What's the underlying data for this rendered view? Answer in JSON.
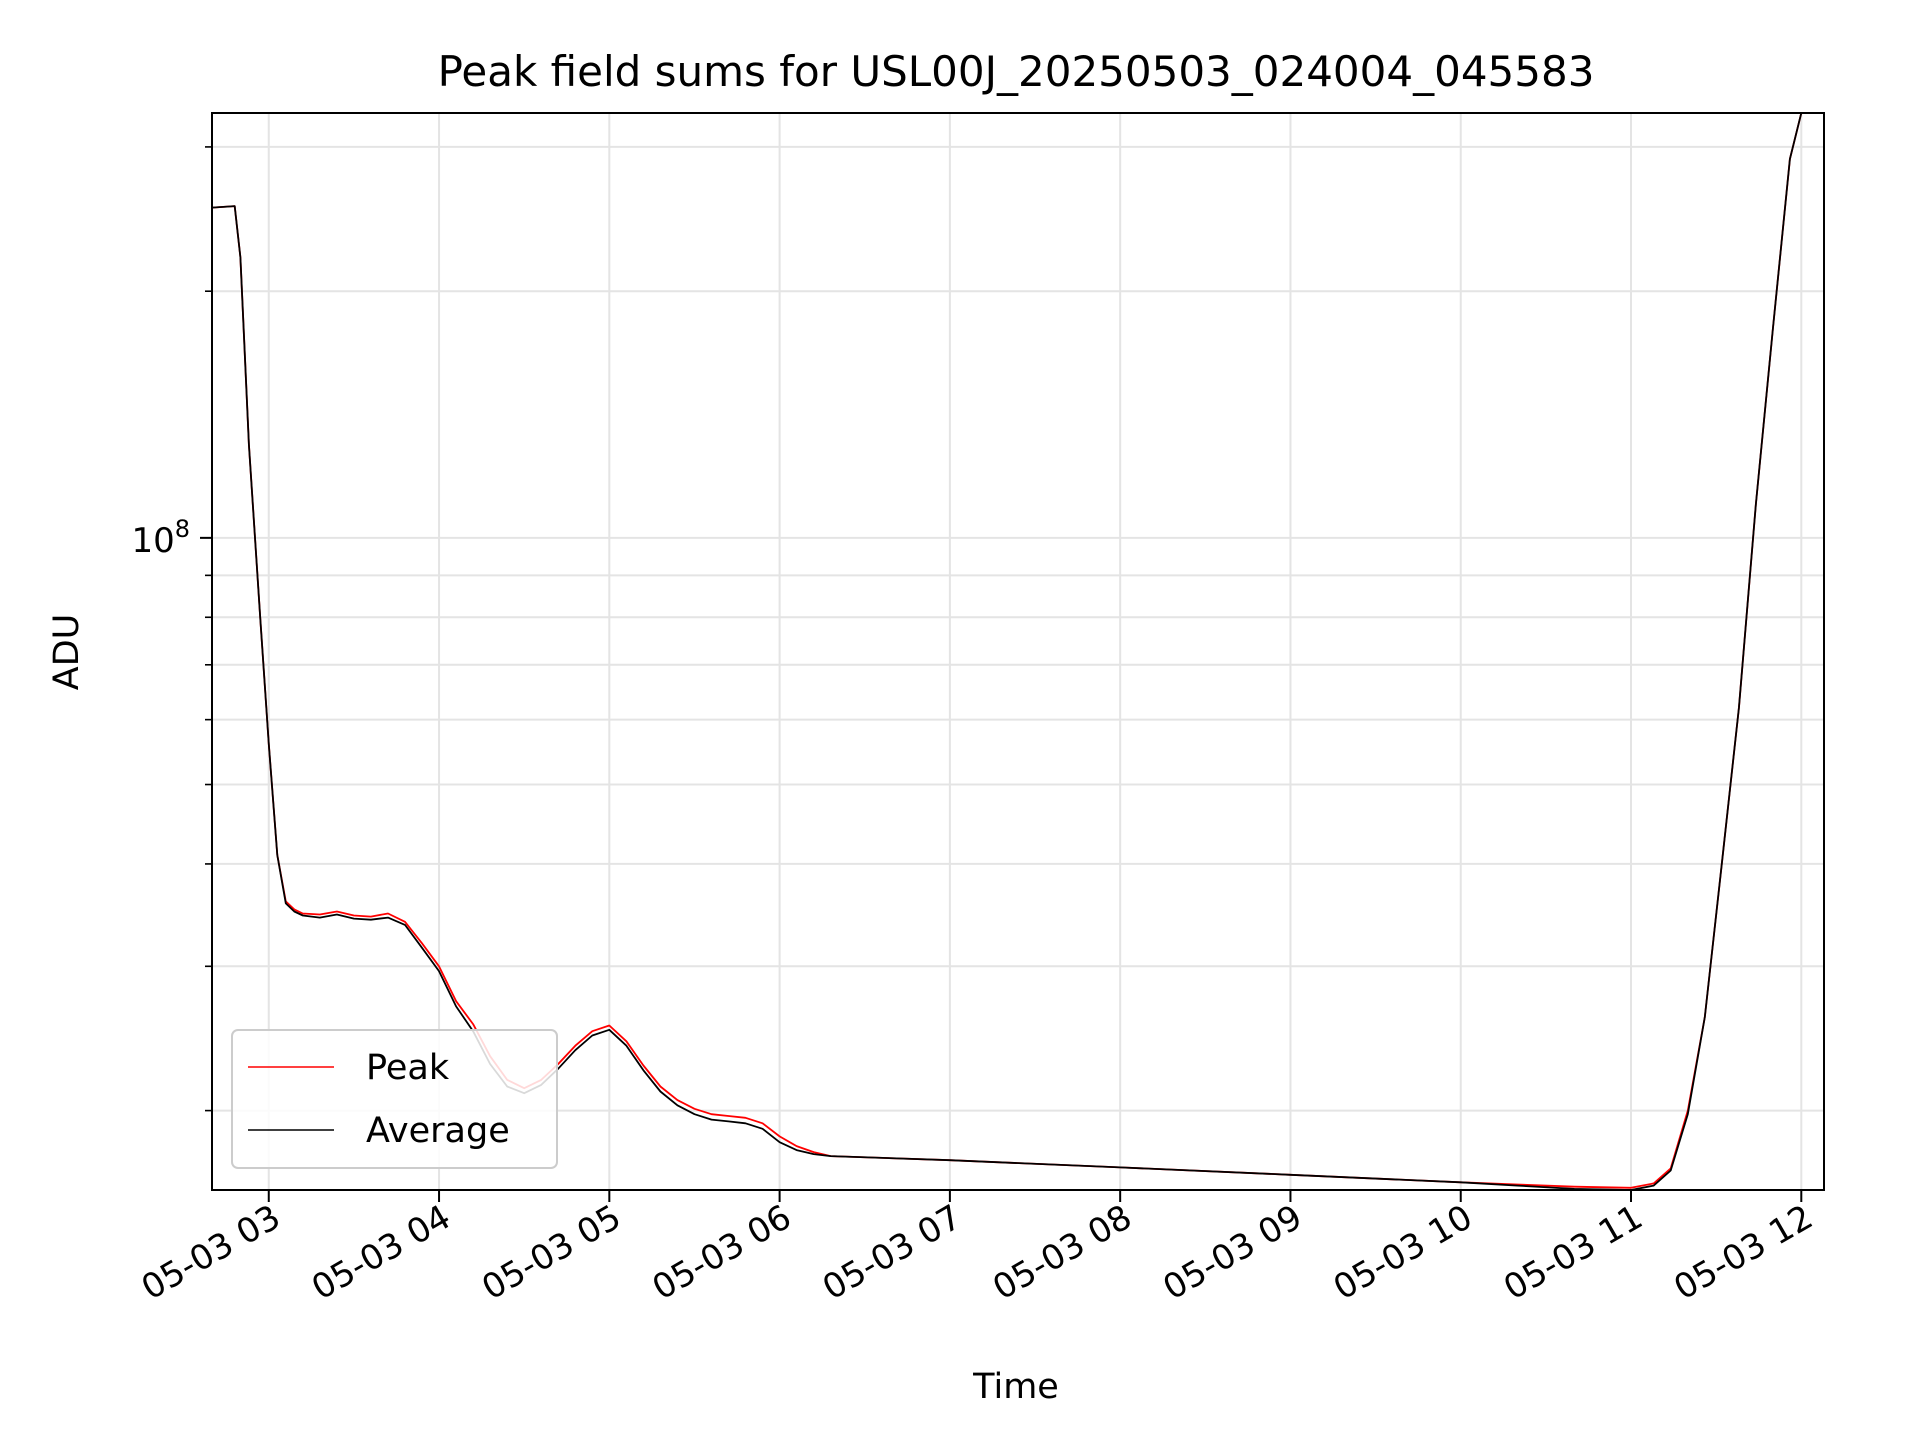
{
  "chart_data": {
    "type": "line",
    "title": "Peak field sums for USL00J_20250503_024004_045583",
    "xlabel": "Time",
    "ylabel": "ADU",
    "y_scale": "log",
    "ylim": [
      16000000,
      330000000
    ],
    "xlim": [
      "05-03 02:40",
      "05-03 12:08"
    ],
    "x_tick_labels": [
      "05-03 03",
      "05-03 04",
      "05-03 05",
      "05-03 06",
      "05-03 07",
      "05-03 08",
      "05-03 09",
      "05-03 10",
      "05-03 11",
      "05-03 12"
    ],
    "x_tick_values": [
      "03:00",
      "04:00",
      "05:00",
      "06:00",
      "07:00",
      "08:00",
      "09:00",
      "10:00",
      "11:00",
      "12:00"
    ],
    "y_major_ticks": [
      {
        "value": 100000000,
        "base": "10",
        "exponent": "8"
      }
    ],
    "y_minor_ticks": [
      20000000,
      30000000,
      40000000,
      50000000,
      60000000,
      70000000,
      80000000,
      90000000,
      200000000,
      300000000
    ],
    "grid": true,
    "legend_position": "lower-left",
    "series": [
      {
        "name": "Peak",
        "color": "#ff0000",
        "x": [
          "02:40",
          "02:48",
          "02:50",
          "02:53",
          "02:57",
          "03:00",
          "03:03",
          "03:06",
          "03:09",
          "03:12",
          "03:18",
          "03:24",
          "03:30",
          "03:36",
          "03:42",
          "03:48",
          "03:54",
          "04:00",
          "04:06",
          "04:12",
          "04:18",
          "04:24",
          "04:30",
          "04:36",
          "04:42",
          "04:48",
          "04:54",
          "05:00",
          "05:06",
          "05:12",
          "05:18",
          "05:24",
          "05:30",
          "05:36",
          "05:42",
          "05:48",
          "05:54",
          "06:00",
          "06:06",
          "06:12",
          "06:18",
          "07:00",
          "08:00",
          "09:00",
          "10:00",
          "10:20",
          "10:40",
          "11:00",
          "11:08",
          "11:14",
          "11:20",
          "11:26",
          "11:32",
          "11:38",
          "11:44",
          "11:50",
          "11:56",
          "12:00"
        ],
        "y": [
          253000000,
          254000000,
          220000000,
          130000000,
          80000000,
          56000000,
          41000000,
          36000000,
          35200000,
          34800000,
          34700000,
          35000000,
          34600000,
          34500000,
          34800000,
          34000000,
          32000000,
          30000000,
          27200000,
          25500000,
          23300000,
          21800000,
          21300000,
          21800000,
          22800000,
          24000000,
          25000000,
          25400000,
          24300000,
          22700000,
          21400000,
          20600000,
          20100000,
          19800000,
          19700000,
          19600000,
          19300000,
          18600000,
          18100000,
          17800000,
          17600000,
          17400000,
          17050000,
          16700000,
          16350000,
          16250000,
          16150000,
          16100000,
          16300000,
          17000000,
          20000000,
          26000000,
          40000000,
          62000000,
          110000000,
          180000000,
          290000000,
          330000000
        ]
      },
      {
        "name": "Average",
        "color": "#000000",
        "x": [
          "02:40",
          "02:48",
          "02:50",
          "02:53",
          "02:57",
          "03:00",
          "03:03",
          "03:06",
          "03:09",
          "03:12",
          "03:18",
          "03:24",
          "03:30",
          "03:36",
          "03:42",
          "03:48",
          "03:54",
          "04:00",
          "04:06",
          "04:12",
          "04:18",
          "04:24",
          "04:30",
          "04:36",
          "04:42",
          "04:48",
          "04:54",
          "05:00",
          "05:06",
          "05:12",
          "05:18",
          "05:24",
          "05:30",
          "05:36",
          "05:42",
          "05:48",
          "05:54",
          "06:00",
          "06:06",
          "06:12",
          "06:18",
          "07:00",
          "08:00",
          "09:00",
          "10:00",
          "10:20",
          "10:40",
          "11:00",
          "11:08",
          "11:14",
          "11:20",
          "11:26",
          "11:32",
          "11:38",
          "11:44",
          "11:50",
          "11:56",
          "12:00"
        ],
        "y": [
          253000000,
          254000000,
          220000000,
          130000000,
          80000000,
          56000000,
          41000000,
          35800000,
          35000000,
          34600000,
          34400000,
          34700000,
          34300000,
          34200000,
          34400000,
          33700000,
          31600000,
          29600000,
          26800000,
          25000000,
          22800000,
          21400000,
          21000000,
          21500000,
          22500000,
          23700000,
          24700000,
          25100000,
          24000000,
          22400000,
          21100000,
          20300000,
          19800000,
          19500000,
          19400000,
          19300000,
          19000000,
          18300000,
          17900000,
          17700000,
          17600000,
          17400000,
          17050000,
          16700000,
          16350000,
          16200000,
          16050000,
          16000000,
          16200000,
          16900000,
          19800000,
          26000000,
          40000000,
          62000000,
          110000000,
          180000000,
          290000000,
          330000000
        ]
      }
    ]
  }
}
